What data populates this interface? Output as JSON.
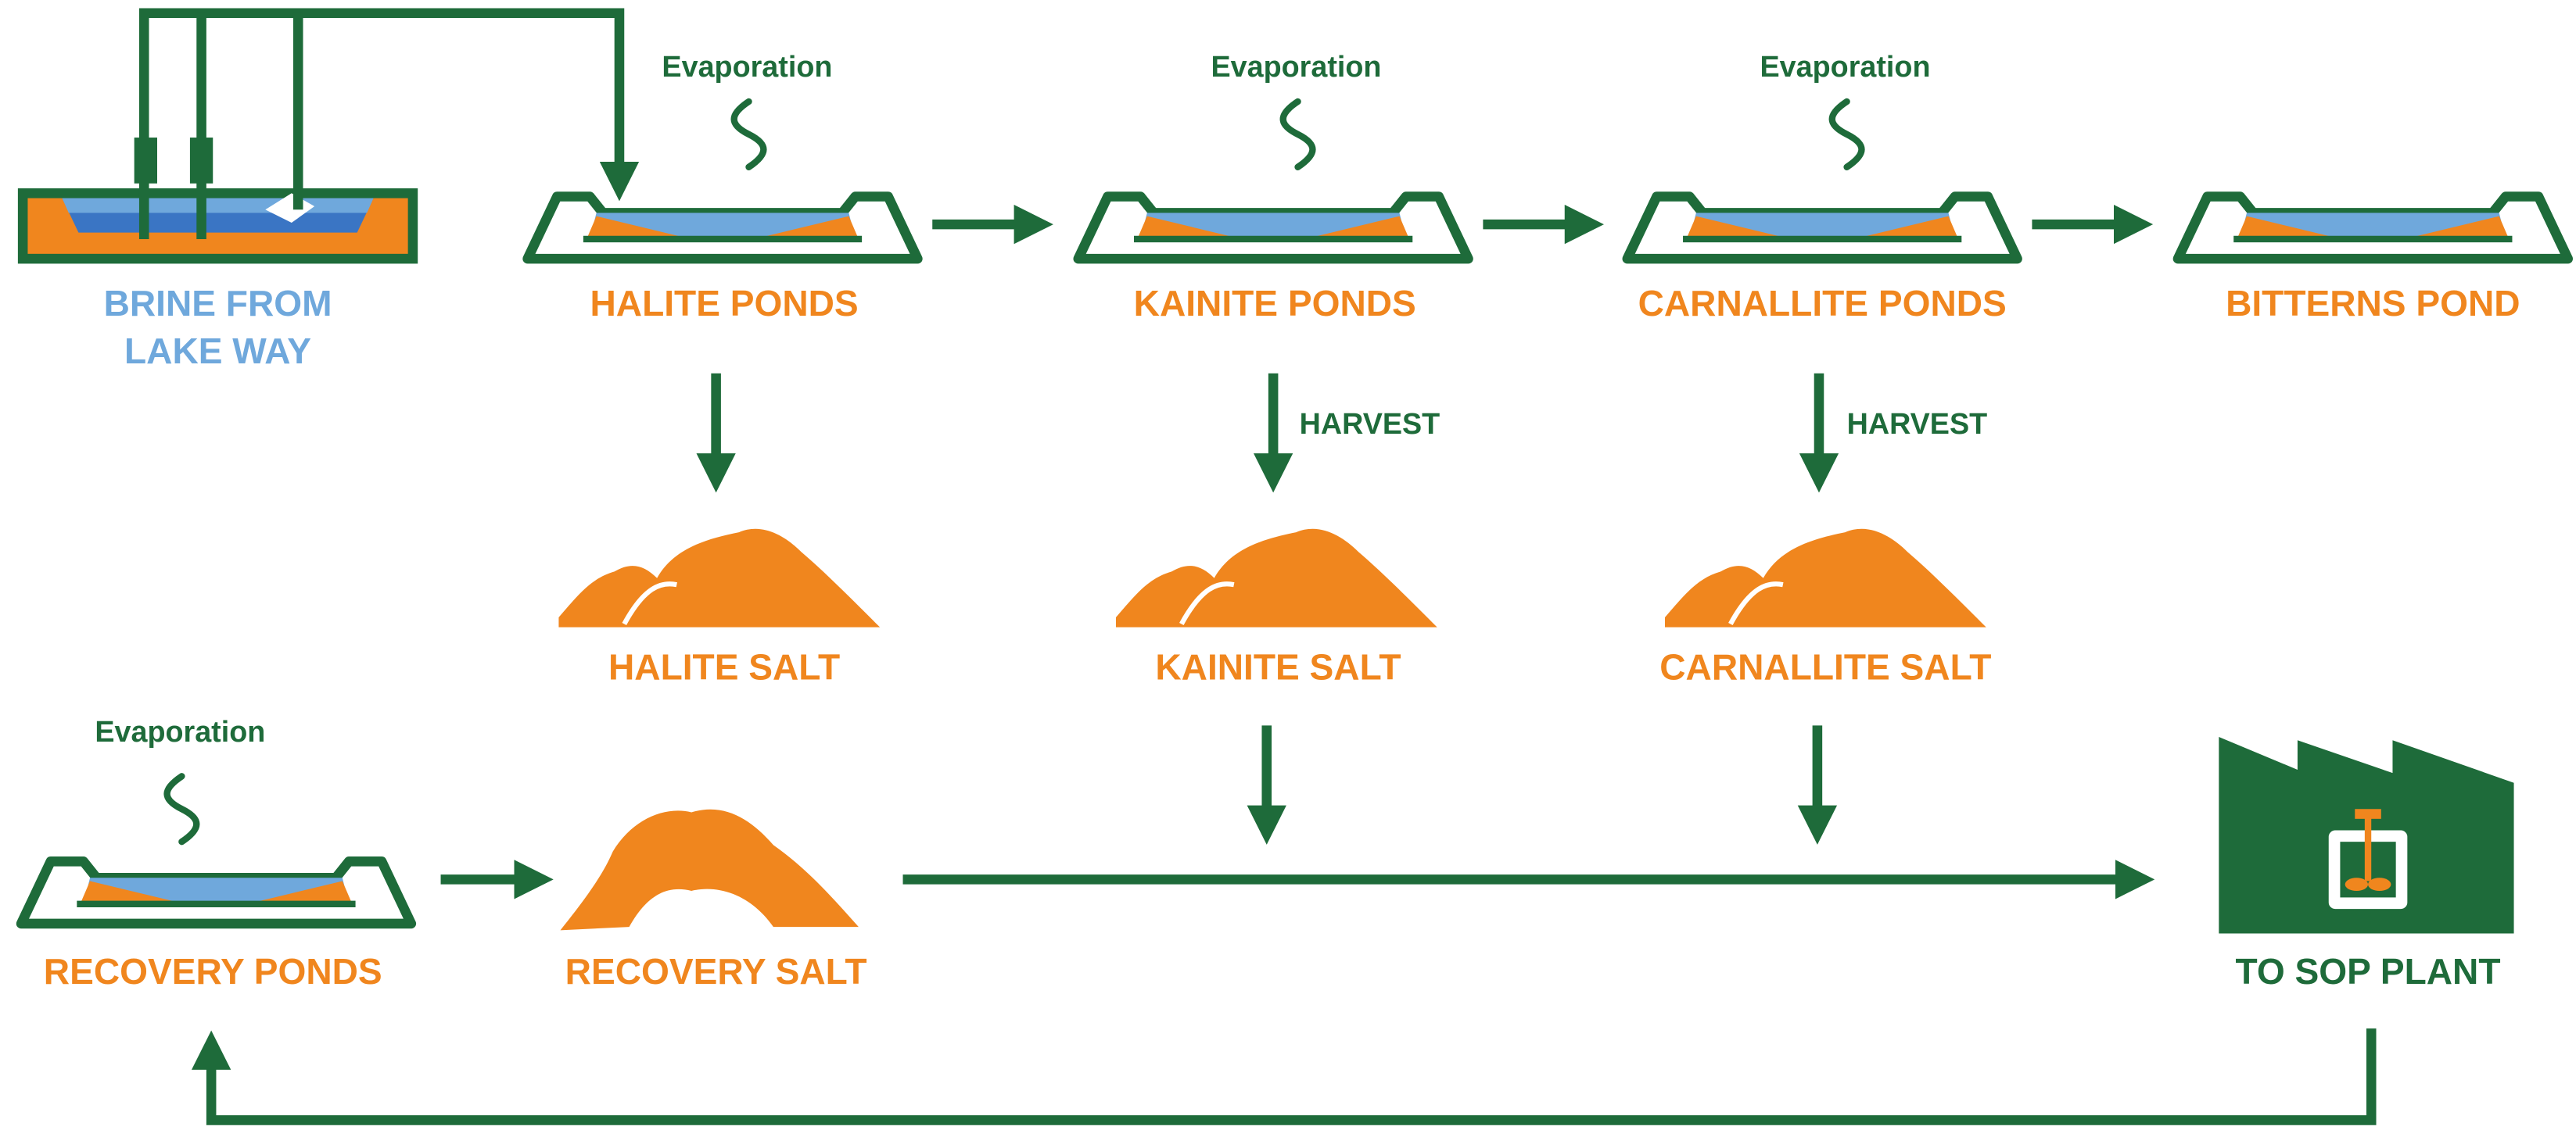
{
  "source": {
    "lines": [
      "BRINE FROM",
      "LAKE WAY"
    ]
  },
  "ponds": [
    {
      "label": "HALITE PONDS",
      "note": "Evaporation"
    },
    {
      "label": "KAINITE PONDS",
      "note": "Evaporation"
    },
    {
      "label": "CARNALLITE PONDS",
      "note": "Evaporation"
    },
    {
      "label": "BITTERNS POND"
    }
  ],
  "salts": [
    {
      "label": "HALITE SALT"
    },
    {
      "label": "KAINITE SALT",
      "note": "HARVEST"
    },
    {
      "label": "CARNALLITE SALT",
      "note": "HARVEST"
    }
  ],
  "recovery": {
    "ponds": {
      "label": "RECOVERY PONDS",
      "note": "Evaporation"
    },
    "salt": {
      "label": "RECOVERY SALT"
    }
  },
  "plant": {
    "label": "TO SOP PLANT"
  }
}
